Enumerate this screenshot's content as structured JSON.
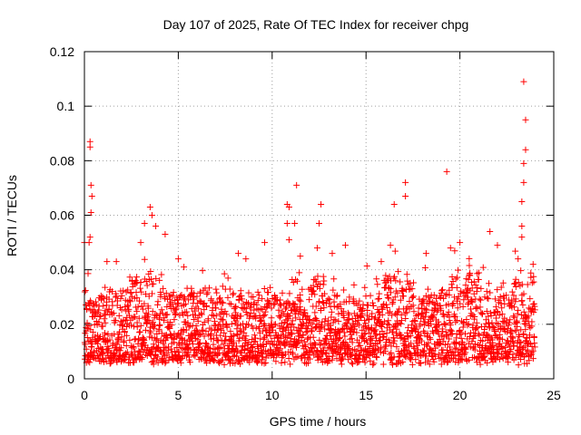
{
  "chart_data": {
    "type": "scatter",
    "title": "Day 107 of 2025, Rate Of TEC Index for receiver chpg",
    "xlabel": "GPS time / hours",
    "ylabel": "ROTI / TECUs",
    "xlim": [
      0,
      25
    ],
    "ylim": [
      0,
      0.12
    ],
    "xticks": [
      0,
      5,
      10,
      15,
      20,
      25
    ],
    "yticks": [
      0,
      0.02,
      0.04,
      0.06,
      0.08,
      0.1,
      0.12
    ],
    "xtick_labels": [
      "0",
      "5",
      "10",
      "15",
      "20",
      "25"
    ],
    "ytick_labels": [
      "0",
      "0.02",
      "0.04",
      "0.06",
      "0.08",
      "0.1",
      "0.12"
    ],
    "grid": true,
    "marker": "+",
    "marker_color": "#ff0000",
    "series": [
      {
        "name": "ROTI",
        "x_range": [
          0,
          24
        ],
        "typical_band": [
          0.005,
          0.03
        ],
        "points": [
          [
            0.3,
            0.087
          ],
          [
            0.3,
            0.085
          ],
          [
            0.35,
            0.071
          ],
          [
            0.4,
            0.067
          ],
          [
            0.35,
            0.061
          ],
          [
            0.3,
            0.052
          ],
          [
            0.25,
            0.05
          ],
          [
            0.0,
            0.05
          ],
          [
            1.2,
            0.043
          ],
          [
            1.7,
            0.043
          ],
          [
            3.5,
            0.063
          ],
          [
            3.6,
            0.06
          ],
          [
            3.2,
            0.057
          ],
          [
            4.3,
            0.053
          ],
          [
            3.0,
            0.05
          ],
          [
            3.8,
            0.056
          ],
          [
            5.0,
            0.044
          ],
          [
            5.3,
            0.041
          ],
          [
            8.2,
            0.046
          ],
          [
            8.6,
            0.044
          ],
          [
            9.6,
            0.05
          ],
          [
            10.8,
            0.064
          ],
          [
            10.9,
            0.063
          ],
          [
            10.8,
            0.057
          ],
          [
            11.2,
            0.057
          ],
          [
            11.3,
            0.071
          ],
          [
            10.9,
            0.051
          ],
          [
            11.5,
            0.045
          ],
          [
            12.6,
            0.064
          ],
          [
            12.5,
            0.057
          ],
          [
            12.4,
            0.048
          ],
          [
            13.2,
            0.046
          ],
          [
            13.9,
            0.049
          ],
          [
            16.3,
            0.049
          ],
          [
            16.5,
            0.064
          ],
          [
            17.1,
            0.072
          ],
          [
            17.1,
            0.067
          ],
          [
            18.2,
            0.046
          ],
          [
            19.3,
            0.076
          ],
          [
            19.5,
            0.048
          ],
          [
            20.0,
            0.05
          ],
          [
            21.6,
            0.054
          ],
          [
            22.0,
            0.049
          ],
          [
            23.4,
            0.109
          ],
          [
            23.5,
            0.095
          ],
          [
            23.5,
            0.084
          ],
          [
            23.4,
            0.079
          ],
          [
            23.4,
            0.072
          ],
          [
            23.3,
            0.065
          ],
          [
            23.3,
            0.056
          ],
          [
            23.3,
            0.052
          ],
          [
            23.9,
            0.042
          ],
          [
            23.1,
            0.044
          ]
        ]
      }
    ]
  }
}
